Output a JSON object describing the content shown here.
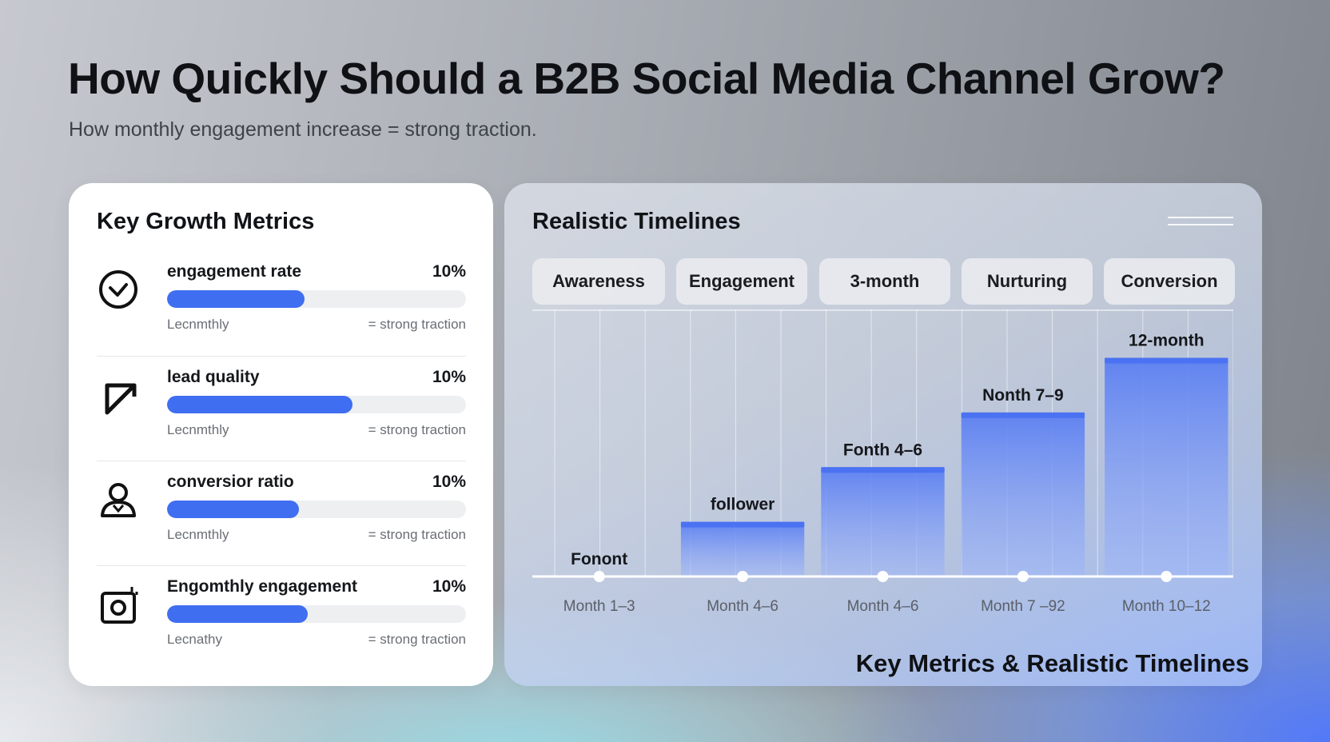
{
  "header": {
    "title": "How Quickly Should a B2B Social Media Channel Grow?",
    "subtitle": "How monthly engagement increase = strong traction."
  },
  "metrics_panel": {
    "title": "Key Growth Metrics",
    "items": [
      {
        "label": "engagement rate",
        "value": "10%",
        "fill_percent": 46,
        "sub_left": "Lecnmthly",
        "sub_right": "= strong traction",
        "icon": "check-circle-icon"
      },
      {
        "label": "lead quality",
        "value": "10%",
        "fill_percent": 62,
        "sub_left": "Lecnmthly",
        "sub_right": "= strong traction",
        "icon": "diagonal-arrow-icon"
      },
      {
        "label": "conversior ratio",
        "value": "10%",
        "fill_percent": 44,
        "sub_left": "Lecnmthly",
        "sub_right": "= strong traction",
        "icon": "person-icon"
      },
      {
        "label": "Engomthly engagement",
        "value": "10%",
        "fill_percent": 47,
        "sub_left": "Lecnathy",
        "sub_right": "= strong traction",
        "icon": "camera-icon"
      }
    ]
  },
  "timeline_panel": {
    "title": "Realistic Timelines",
    "tabs": [
      "Awareness",
      "Engagement",
      "3-month",
      "Nurturing",
      "Conversion"
    ],
    "footer_title": "Key Metrics & Realistic Timelines"
  },
  "colors": {
    "accent": "#3f6ef0",
    "bar_top": "#4a72f2"
  },
  "chart_data": {
    "type": "bar",
    "categories": [
      "Month 1–3",
      "Month 4–6",
      "Month 4–6",
      "Month 7 –92",
      "Month 10–12"
    ],
    "values": [
      0,
      1,
      2,
      3,
      4
    ],
    "bar_labels": [
      "Fonont",
      "follower",
      "Fonth 4–6",
      "Nonth 7–9",
      "12-month"
    ],
    "ylim": [
      0,
      4.3
    ],
    "grid": true,
    "legend": "none"
  }
}
